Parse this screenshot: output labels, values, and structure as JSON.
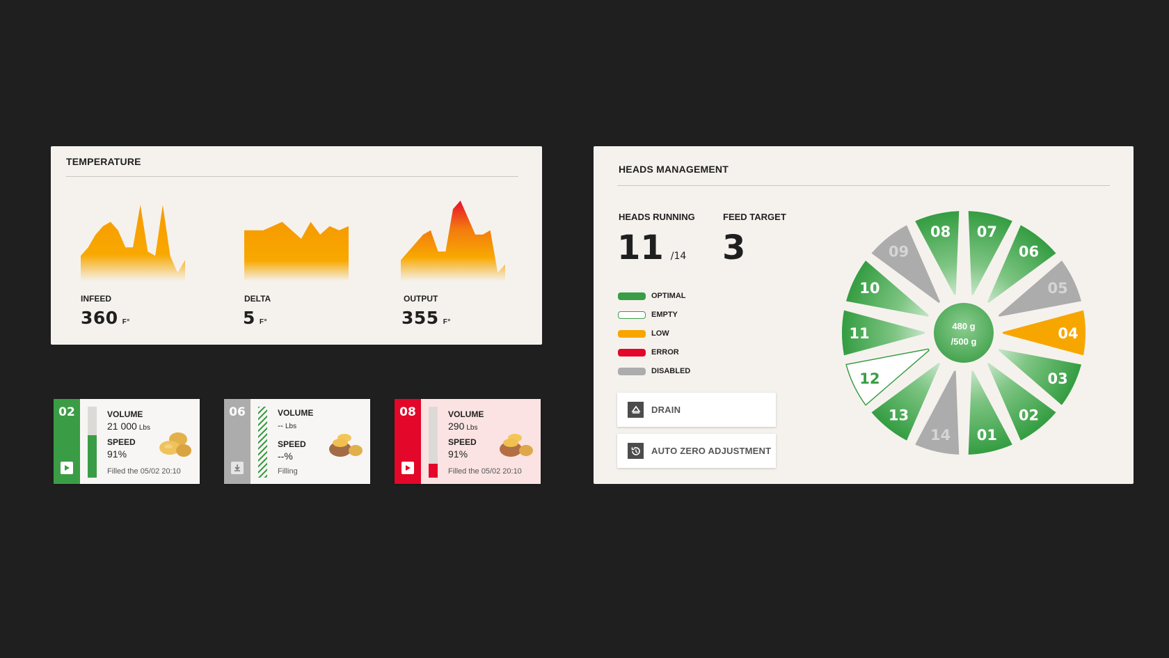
{
  "colors": {
    "optimal": "#3a9d45",
    "empty": "#ffffff",
    "low": "#f7a600",
    "error": "#e3072a",
    "disabled": "#acacac",
    "background": "#1f1f1f",
    "panel": "#f5f2ee"
  },
  "temperature": {
    "title": "TEMPERATURE",
    "metrics": [
      {
        "label": "INFEED",
        "value": "360",
        "unit": "F°",
        "trend": [
          0.3,
          0.4,
          0.55,
          0.65,
          0.7,
          0.6,
          0.4,
          0.4,
          0.9,
          0.35,
          0.3,
          0.9,
          0.3,
          0.1,
          0.25
        ]
      },
      {
        "label": "DELTA",
        "value": "5",
        "unit": "F°",
        "trend": [
          0.6,
          0.6,
          0.6,
          0.65,
          0.7,
          0.6,
          0.5,
          0.7,
          0.55,
          0.65,
          0.6,
          0.65
        ]
      },
      {
        "label": "OUTPUT",
        "value": "355",
        "unit": "F°",
        "trend": [
          0.25,
          0.35,
          0.45,
          0.55,
          0.6,
          0.35,
          0.35,
          0.85,
          0.95,
          0.75,
          0.55,
          0.55,
          0.6,
          0.1,
          0.2
        ]
      }
    ]
  },
  "cards": [
    {
      "id": "02",
      "state": "optimal",
      "fill": 0.6,
      "volume_label": "VOLUME",
      "volume": "21 000",
      "volume_unit": "Lbs",
      "speed_label": "SPEED",
      "speed": "91%",
      "note": "Filled the 05/02 20:10",
      "action_icon": "play-icon"
    },
    {
      "id": "06",
      "state": "disabled",
      "fill": 1.0,
      "volume_label": "VOLUME",
      "volume": "--",
      "volume_unit": "Lbs",
      "speed_label": "SPEED",
      "speed": "--%",
      "note": "Filling",
      "action_icon": "download-icon"
    },
    {
      "id": "08",
      "state": "error",
      "fill": 0.2,
      "volume_label": "VOLUME",
      "volume": "290",
      "volume_unit": "Lbs",
      "speed_label": "SPEED",
      "speed": "91%",
      "note": "Filled the 05/02 20:10",
      "action_icon": "play-icon"
    }
  ],
  "heads": {
    "title": "HEADS MANAGEMENT",
    "running_label": "HEADS RUNNING",
    "running": "11",
    "running_total": "/14",
    "feed_label": "FEED TARGET",
    "feed": "3",
    "legend": [
      {
        "key": "optimal",
        "label": "OPTIMAL"
      },
      {
        "key": "empty",
        "label": "EMPTY"
      },
      {
        "key": "low",
        "label": "LOW"
      },
      {
        "key": "error",
        "label": "ERROR"
      },
      {
        "key": "disabled",
        "label": "DISABLED"
      }
    ],
    "drain_label": "DRAIN",
    "auto_zero_label": "AUTO ZERO ADJUSTMENT",
    "center_line1": "480 g",
    "center_line2": "/500 g",
    "segments": [
      {
        "id": "01",
        "state": "optimal"
      },
      {
        "id": "02",
        "state": "optimal"
      },
      {
        "id": "03",
        "state": "optimal"
      },
      {
        "id": "04",
        "state": "low"
      },
      {
        "id": "05",
        "state": "disabled"
      },
      {
        "id": "06",
        "state": "optimal"
      },
      {
        "id": "07",
        "state": "optimal"
      },
      {
        "id": "08",
        "state": "optimal"
      },
      {
        "id": "09",
        "state": "disabled"
      },
      {
        "id": "10",
        "state": "optimal"
      },
      {
        "id": "11",
        "state": "optimal"
      },
      {
        "id": "12",
        "state": "empty"
      },
      {
        "id": "13",
        "state": "optimal"
      },
      {
        "id": "14",
        "state": "disabled"
      }
    ]
  }
}
